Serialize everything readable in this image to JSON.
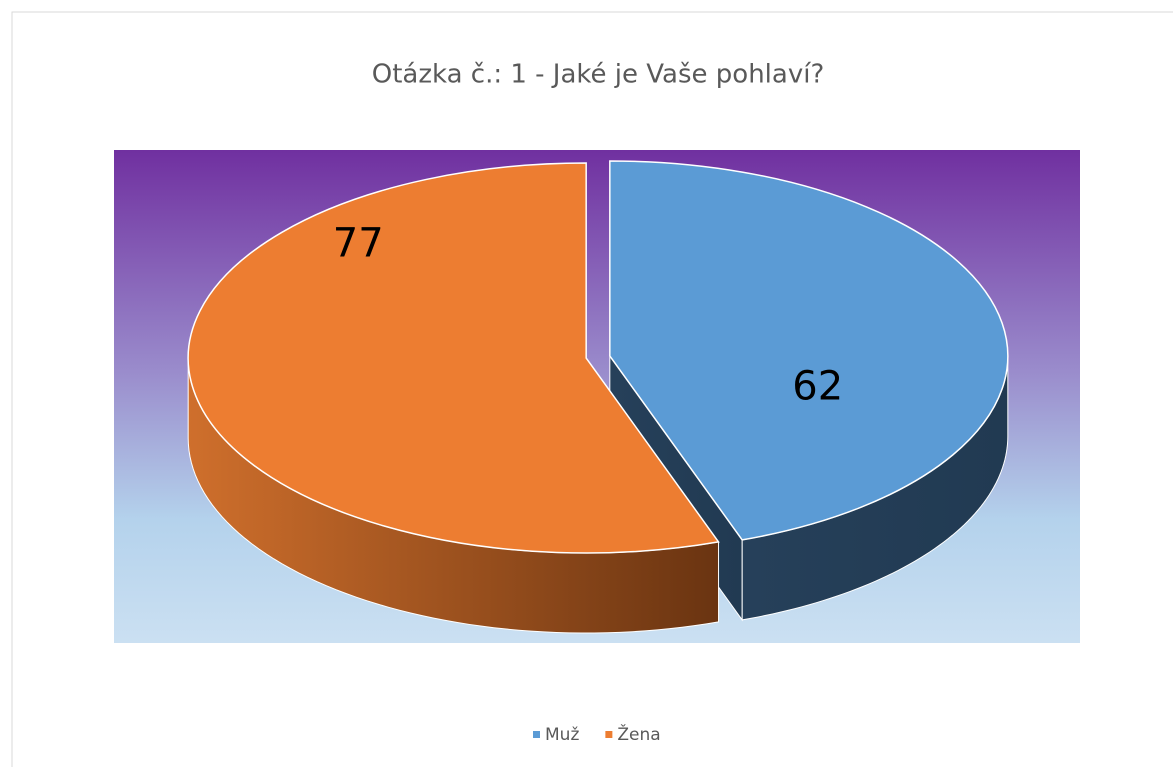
{
  "chart_data": {
    "type": "pie3d",
    "title": "Otázka č.: 1 - Jaké  je Vaše pohlaví?",
    "categories": [
      "Muž",
      "Žena"
    ],
    "values": [
      62,
      77
    ],
    "colors": [
      "#5b9bd5",
      "#ed7d31"
    ],
    "legend": "bottom"
  }
}
